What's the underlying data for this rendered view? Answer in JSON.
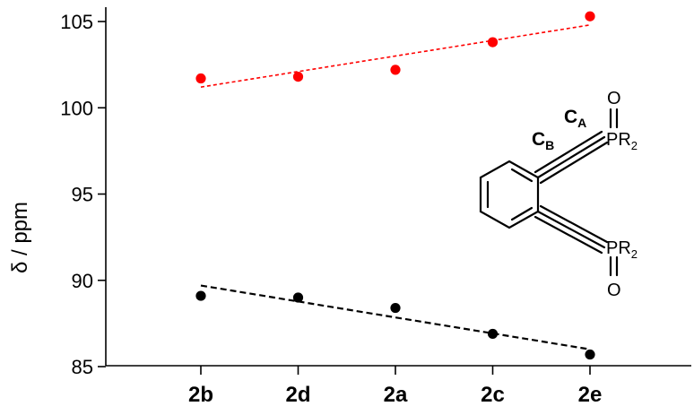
{
  "chart_data": {
    "type": "scatter",
    "categories": [
      "2b",
      "2d",
      "2a",
      "2c",
      "2e"
    ],
    "ylabel": "δ / ppm",
    "ylim": [
      85,
      106
    ],
    "yticks": [
      85,
      90,
      95,
      100,
      105
    ],
    "series": [
      {
        "color": "#ff0000",
        "values": [
          101.7,
          101.8,
          102.2,
          103.8,
          105.3
        ],
        "trend": [
          101.2,
          104.8
        ]
      },
      {
        "color": "#000000",
        "values": [
          89.1,
          89.0,
          88.4,
          86.9,
          85.7
        ],
        "trend": [
          89.7,
          86.0
        ]
      }
    ],
    "structure": {
      "label_ca_main": "C",
      "label_ca_sub": "A",
      "label_cb_main": "C",
      "label_cb_sub": "B",
      "oxygen": "O",
      "group_main": "PR",
      "group_sub": "2"
    }
  }
}
